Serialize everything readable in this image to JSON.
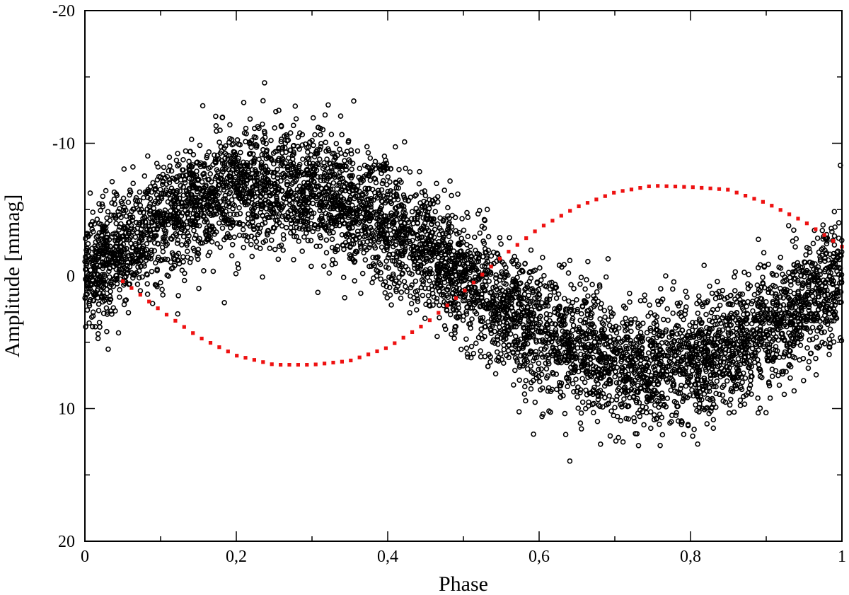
{
  "chart_data": {
    "type": "scatter",
    "title": "",
    "xlabel": "Phase",
    "ylabel": "Amplitude [mmag]",
    "xlim": [
      0,
      1
    ],
    "ylim": [
      -20,
      20
    ],
    "y_inverted": true,
    "grid": false,
    "x_ticks": [
      0,
      0.2,
      0.4,
      0.6,
      0.8,
      1
    ],
    "x_tick_labels": [
      "0",
      "0,2",
      "0,4",
      "0,6",
      "0,8",
      "1"
    ],
    "x_minor_ticks": [
      0.1,
      0.3,
      0.5,
      0.7,
      0.9
    ],
    "y_ticks": [
      -20,
      -10,
      0,
      10,
      20
    ],
    "y_tick_labels": [
      "-20",
      "-10",
      "0",
      "10",
      "20"
    ],
    "y_minor_ticks": [
      -15,
      -5,
      5,
      15
    ],
    "series": [
      {
        "name": "observations",
        "style": "open-circles",
        "color": "#000000",
        "model": "amplitude = -A*sin(2*pi*(phase - phi0)) + noise",
        "semi_amplitude": 6.8,
        "phi0": 0.0,
        "noise_sigma": 2.3,
        "n_points": 6000
      },
      {
        "name": "sinusoidal fit",
        "style": "dotted-line",
        "color": "#ee1111",
        "x_range": [
          0.05,
          1.0
        ],
        "x": [
          0.05,
          0.1,
          0.15,
          0.2,
          0.25,
          0.3,
          0.35,
          0.4,
          0.45,
          0.5,
          0.55,
          0.6,
          0.65,
          0.7,
          0.75,
          0.8,
          0.85,
          0.9,
          0.95,
          1.0
        ],
        "y": [
          0.4,
          2.6,
          4.6,
          6.0,
          6.7,
          6.7,
          6.4,
          5.4,
          3.6,
          1.2,
          -1.4,
          -3.6,
          -5.2,
          -6.3,
          -6.8,
          -6.7,
          -6.5,
          -5.5,
          -4.1,
          -2.2
        ]
      }
    ]
  }
}
